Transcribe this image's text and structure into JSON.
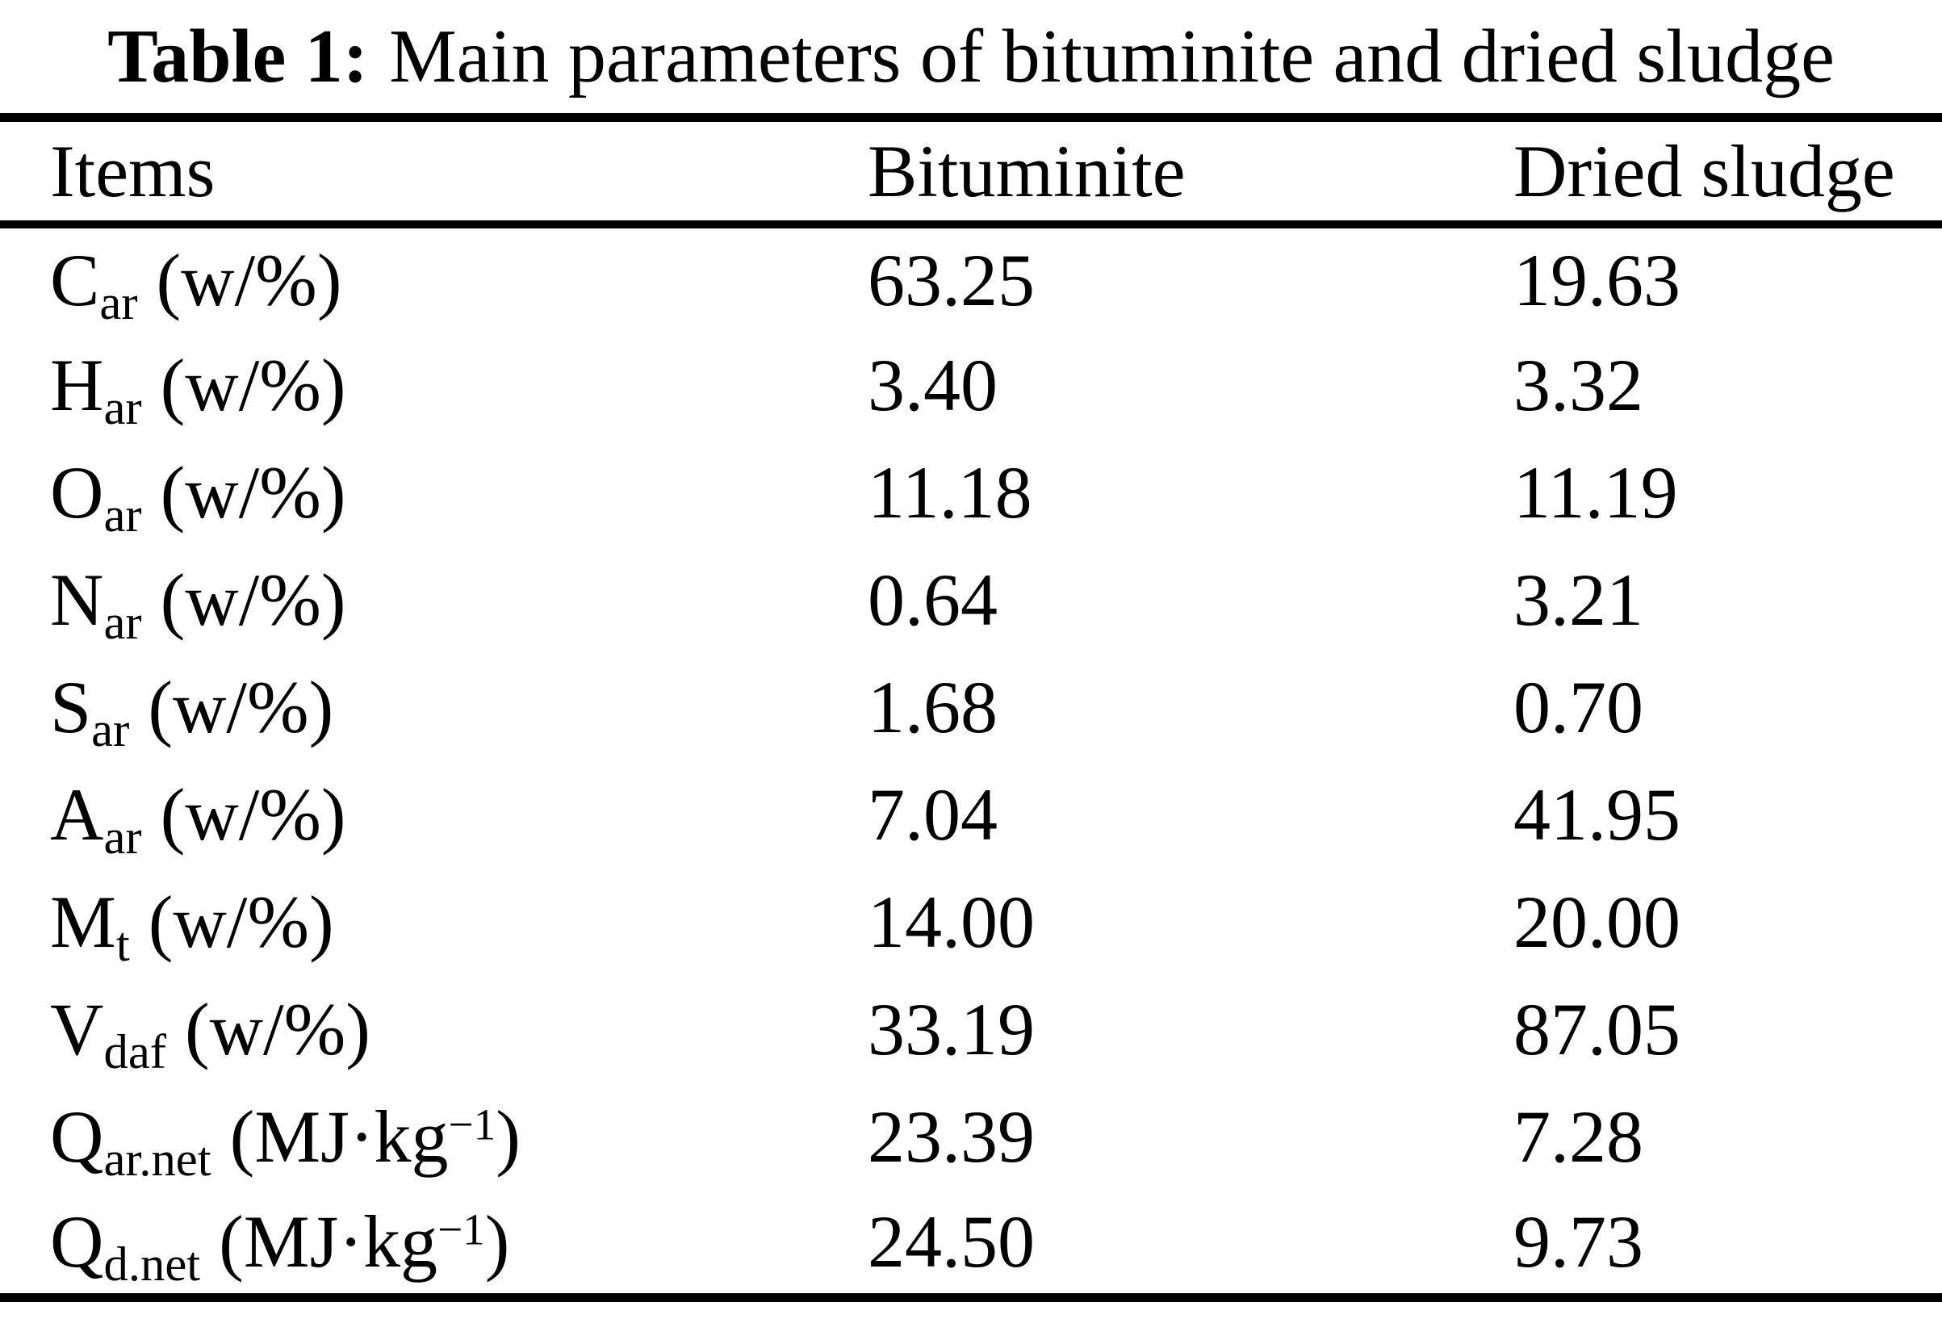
{
  "title": {
    "label": "Table 1:",
    "text": "Main parameters of bituminite and dried sludge"
  },
  "table": {
    "columns": {
      "items": "Items",
      "bituminite": "Bituminite",
      "dried_sludge": "Dried sludge"
    },
    "rows": [
      {
        "symbol": "C",
        "sub": "ar",
        "unit_pre": " (w/%)",
        "unit_sup": "",
        "unit_post": "",
        "bituminite": "63.25",
        "dried_sludge": "19.63"
      },
      {
        "symbol": "H",
        "sub": "ar",
        "unit_pre": " (w/%)",
        "unit_sup": "",
        "unit_post": "",
        "bituminite": "3.40",
        "dried_sludge": "3.32"
      },
      {
        "symbol": "O",
        "sub": "ar",
        "unit_pre": " (w/%)",
        "unit_sup": "",
        "unit_post": "",
        "bituminite": "11.18",
        "dried_sludge": "11.19"
      },
      {
        "symbol": "N",
        "sub": "ar",
        "unit_pre": " (w/%)",
        "unit_sup": "",
        "unit_post": "",
        "bituminite": "0.64",
        "dried_sludge": "3.21"
      },
      {
        "symbol": "S",
        "sub": "ar",
        "unit_pre": " (w/%)",
        "unit_sup": "",
        "unit_post": "",
        "bituminite": "1.68",
        "dried_sludge": "0.70"
      },
      {
        "symbol": "A",
        "sub": "ar",
        "unit_pre": " (w/%)",
        "unit_sup": "",
        "unit_post": "",
        "bituminite": "7.04",
        "dried_sludge": "41.95"
      },
      {
        "symbol": "M",
        "sub": "t",
        "unit_pre": " (w/%)",
        "unit_sup": "",
        "unit_post": "",
        "bituminite": "14.00",
        "dried_sludge": "20.00"
      },
      {
        "symbol": "V",
        "sub": "daf",
        "unit_pre": " (w/%)",
        "unit_sup": "",
        "unit_post": "",
        "bituminite": "33.19",
        "dried_sludge": "87.05"
      },
      {
        "symbol": "Q",
        "sub": "ar.net",
        "unit_pre": " (MJ·kg",
        "unit_sup": "−1",
        "unit_post": ")",
        "bituminite": "23.39",
        "dried_sludge": "7.28"
      },
      {
        "symbol": "Q",
        "sub": "d.net",
        "unit_pre": " (MJ·kg",
        "unit_sup": "−1",
        "unit_post": ")",
        "bituminite": "24.50",
        "dried_sludge": "9.73"
      }
    ]
  }
}
